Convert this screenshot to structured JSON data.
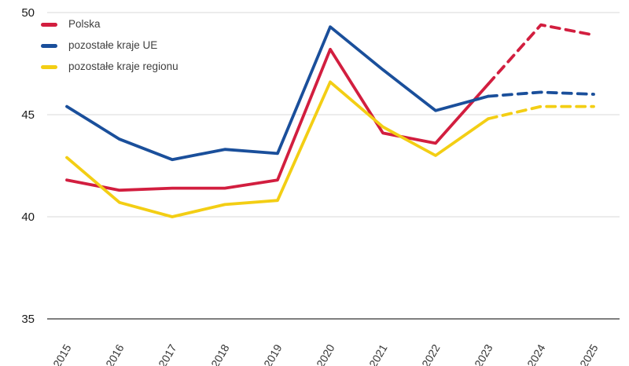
{
  "chart_data": {
    "type": "line",
    "title": "",
    "xlabel": "",
    "ylabel": "",
    "x": [
      2015,
      2016,
      2017,
      2018,
      2019,
      2020,
      2021,
      2022,
      2023,
      2024,
      2025
    ],
    "yticks": [
      50,
      45,
      40,
      35
    ],
    "ylim": [
      35,
      50
    ],
    "grid": "horizontal",
    "legend_position": "top-left",
    "forecast_start_index": 8,
    "forecast_style": "dashed",
    "colors": {
      "grid": "#d9d9d9",
      "axis": "#7f7f7f",
      "y_tick_label": "#1a1a1a",
      "x_tick_label": "#333333"
    },
    "series": [
      {
        "name": "Polska",
        "color": "#d21e3f",
        "values": [
          41.8,
          41.3,
          41.4,
          41.4,
          41.8,
          48.2,
          44.1,
          43.6,
          46.5,
          49.4,
          48.9
        ]
      },
      {
        "name": "pozostałe kraje UE",
        "color": "#1a4f9b",
        "values": [
          45.4,
          43.8,
          42.8,
          43.3,
          43.1,
          49.3,
          47.2,
          45.2,
          45.9,
          46.1,
          46.0
        ]
      },
      {
        "name": "pozostałe kraje regionu",
        "color": "#f3ce14",
        "values": [
          42.9,
          40.7,
          40.0,
          40.6,
          40.8,
          46.6,
          44.4,
          43.0,
          44.8,
          45.4,
          45.4
        ]
      }
    ]
  }
}
